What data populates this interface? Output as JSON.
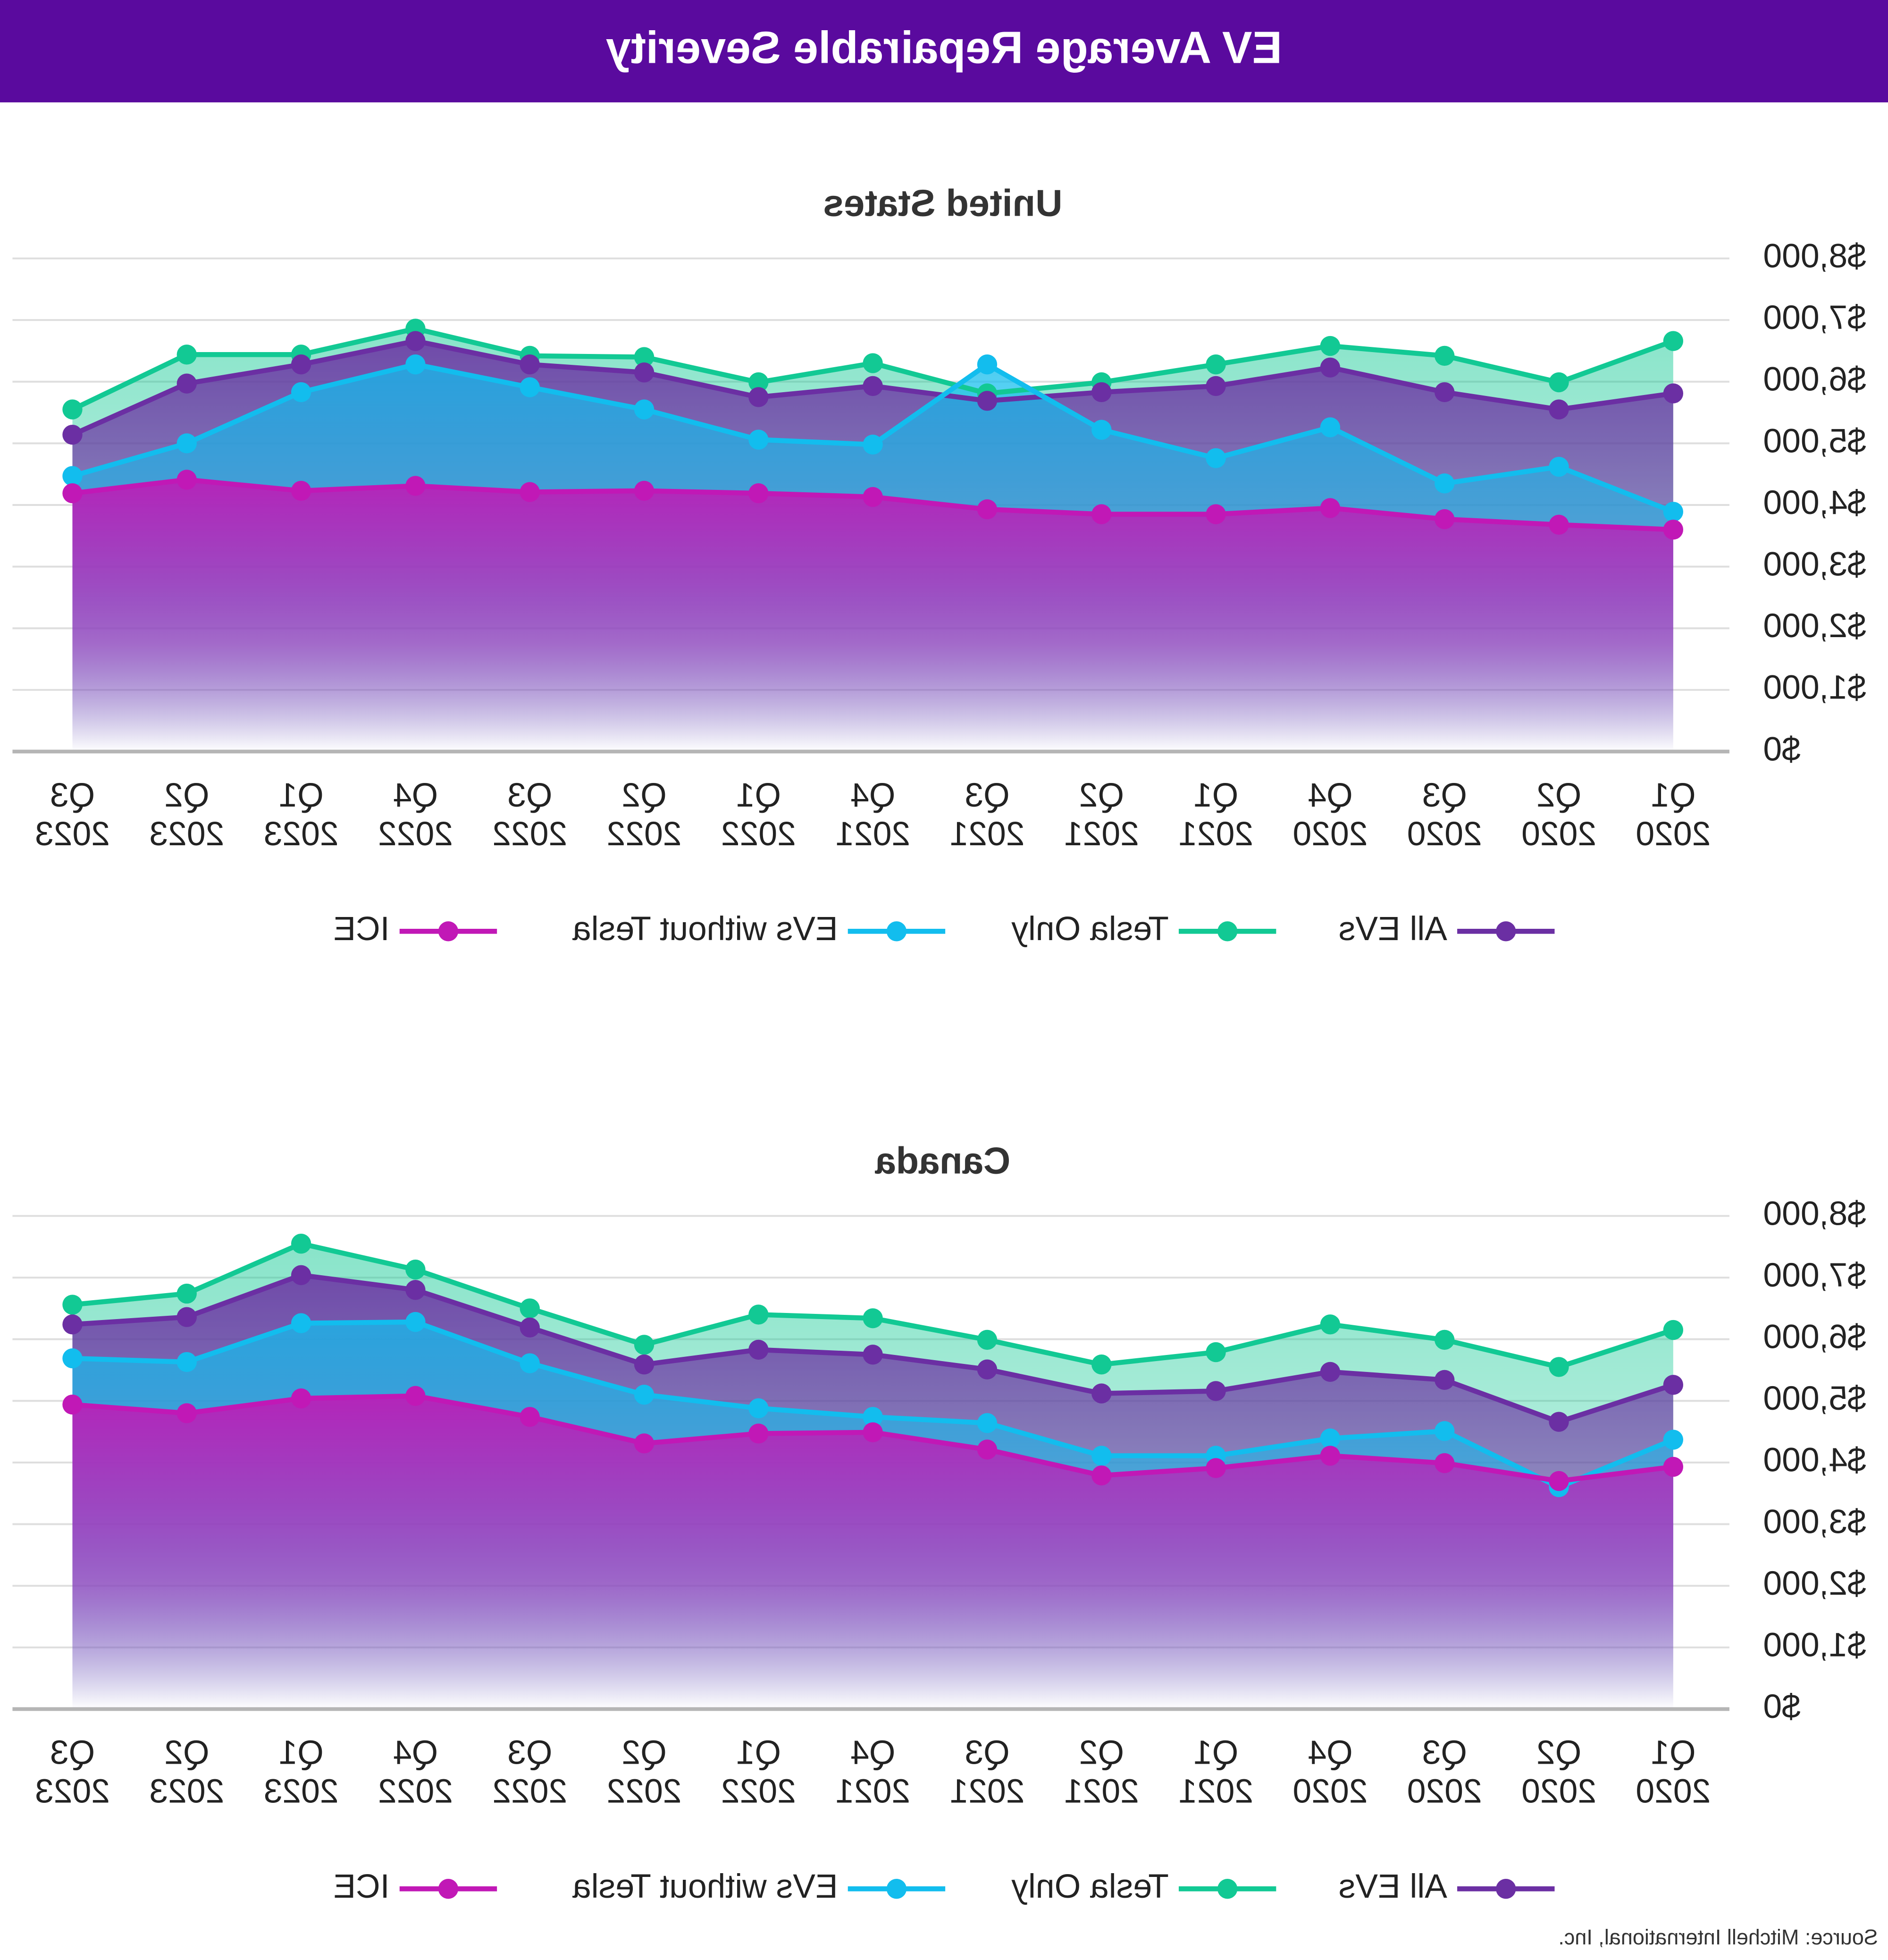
{
  "title": "EV Average Repairable Severity",
  "source": "Source: Mitchell International, Inc.",
  "chart_data": [
    {
      "type": "area",
      "title": "United States",
      "categories": [
        "Q1 2020",
        "Q2 2020",
        "Q3 2020",
        "Q4 2020",
        "Q1 2021",
        "Q2 2021",
        "Q3 2021",
        "Q4 2021",
        "Q1 2022",
        "Q2 2022",
        "Q3 2022",
        "Q4 2022",
        "Q1 2023",
        "Q2 2023",
        "Q3 2023"
      ],
      "series": [
        {
          "name": "All EVs",
          "color": "#6b2fa3",
          "values": [
            5810,
            5550,
            5830,
            6230,
            5930,
            5830,
            5690,
            5930,
            5750,
            6150,
            6280,
            6660,
            6280,
            5970,
            5140
          ]
        },
        {
          "name": "Tesla Only",
          "color": "#12c994",
          "values": [
            6660,
            5990,
            6420,
            6580,
            6280,
            5990,
            5810,
            6300,
            5990,
            6400,
            6420,
            6860,
            6440,
            6440,
            5550
          ]
        },
        {
          "name": "EVs without Tesla",
          "color": "#12bdee",
          "values": [
            3890,
            4620,
            4350,
            5260,
            4760,
            5220,
            6280,
            4980,
            5060,
            5550,
            5910,
            6280,
            5830,
            5000,
            4470
          ]
        },
        {
          "name": "ICE",
          "color": "#c118b6",
          "values": [
            3600,
            3680,
            3770,
            3950,
            3850,
            3850,
            3930,
            4130,
            4190,
            4230,
            4210,
            4310,
            4230,
            4410,
            4190
          ]
        }
      ],
      "ylim": [
        0,
        8000
      ],
      "yticks": [
        {
          "value": 0,
          "label": "$0"
        },
        {
          "value": 1000,
          "label": "$1,000"
        },
        {
          "value": 2000,
          "label": "$2,000"
        },
        {
          "value": 3000,
          "label": "$3,000"
        },
        {
          "value": 4000,
          "label": "$4,000"
        },
        {
          "value": 5000,
          "label": "$5,000"
        },
        {
          "value": 6000,
          "label": "$6,000"
        },
        {
          "value": 7000,
          "label": "$7,000"
        },
        {
          "value": 8000,
          "label": "$8,000"
        }
      ],
      "grid": true,
      "legend": "bottom"
    },
    {
      "type": "area",
      "title": "Canada",
      "categories": [
        "Q1 2020",
        "Q2 2020",
        "Q3 2020",
        "Q4 2020",
        "Q1 2021",
        "Q2 2021",
        "Q3 2021",
        "Q4 2021",
        "Q1 2022",
        "Q2 2022",
        "Q3 2022",
        "Q4 2022",
        "Q1 2023",
        "Q2 2023",
        "Q3 2023"
      ],
      "series": [
        {
          "name": "All EVs",
          "color": "#6b2fa3",
          "values": [
            5260,
            4660,
            5340,
            5470,
            5160,
            5120,
            5510,
            5750,
            5830,
            5590,
            6190,
            6800,
            7040,
            6360,
            6240
          ]
        },
        {
          "name": "Tesla Only",
          "color": "#12c994",
          "values": [
            6150,
            5550,
            5990,
            6240,
            5790,
            5590,
            5990,
            6340,
            6400,
            5910,
            6500,
            7130,
            7550,
            6740,
            6560
          ]
        },
        {
          "name": "EVs without Tesla",
          "color": "#12bdee",
          "values": [
            4370,
            3600,
            4510,
            4390,
            4110,
            4110,
            4640,
            4740,
            4880,
            5100,
            5610,
            6280,
            6260,
            5630,
            5690
          ]
        },
        {
          "name": "ICE",
          "color": "#c118b6",
          "values": [
            3930,
            3700,
            3990,
            4110,
            3910,
            3790,
            4210,
            4490,
            4470,
            4310,
            4740,
            5080,
            5040,
            4800,
            4940
          ]
        }
      ],
      "ylim": [
        0,
        8000
      ],
      "yticks": [
        {
          "value": 0,
          "label": "$0"
        },
        {
          "value": 1000,
          "label": "$1,000"
        },
        {
          "value": 2000,
          "label": "$2,000"
        },
        {
          "value": 3000,
          "label": "$3,000"
        },
        {
          "value": 4000,
          "label": "$4,000"
        },
        {
          "value": 5000,
          "label": "$5,000"
        },
        {
          "value": 6000,
          "label": "$6,000"
        },
        {
          "value": 7000,
          "label": "$7,000"
        },
        {
          "value": 8000,
          "label": "$8,000"
        }
      ],
      "grid": true,
      "legend": "bottom"
    }
  ]
}
